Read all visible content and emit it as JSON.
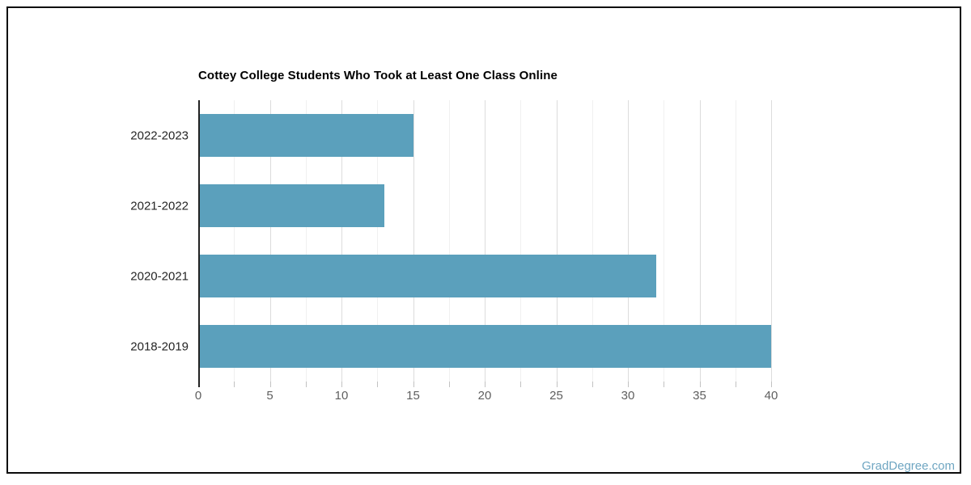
{
  "chart_data": {
    "type": "bar",
    "orientation": "horizontal",
    "title": "Cottey College Students Who Took at Least One Class Online",
    "categories": [
      "2022-2023",
      "2021-2022",
      "2020-2021",
      "2018-2019"
    ],
    "values": [
      15,
      13,
      32,
      40
    ],
    "xlim": [
      0,
      40
    ],
    "x_major_ticks": [
      0,
      5,
      10,
      15,
      20,
      25,
      30,
      35,
      40
    ],
    "x_minor_step": 2.5,
    "grid": true,
    "legend": "none",
    "bar_color": "#5BA0BC",
    "major_gridline_color": "#dcdcdc",
    "minor_gridline_color": "#f0f0f0",
    "axis_line_color": "#222222",
    "tick_label_color": "#5f5f5f",
    "category_label_color": "#262626",
    "title_color": "#000000"
  },
  "watermark": {
    "text": "GradDegree.com",
    "color": "#6FA6C2"
  }
}
